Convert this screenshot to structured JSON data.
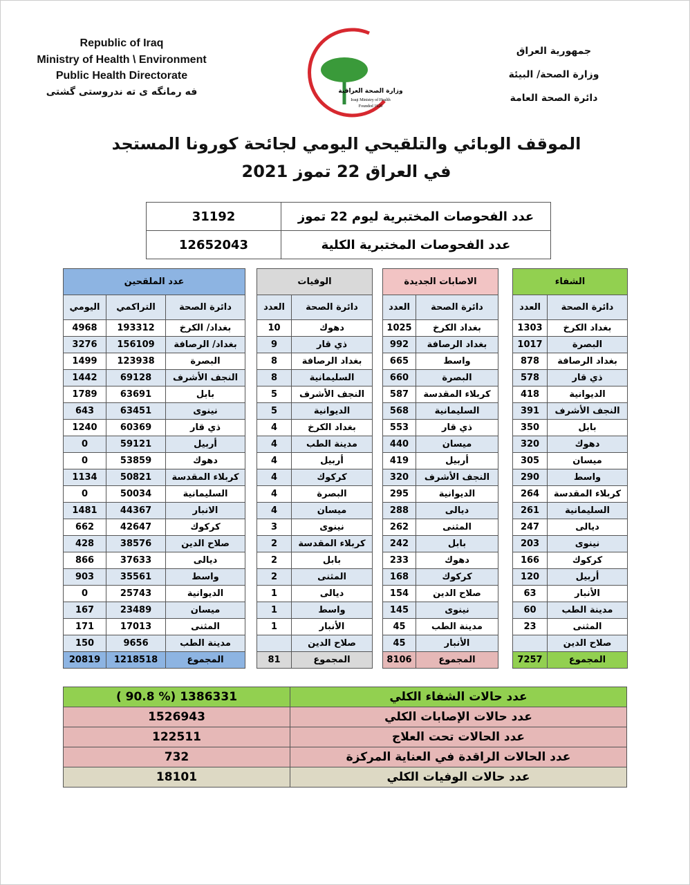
{
  "header": {
    "left": [
      "Republic of Iraq",
      "Ministry of Health \\ Environment",
      "Public Health Directorate",
      "فه رمانگه ی ته ندروستی گشتی"
    ],
    "right": [
      "جمهورية العراق",
      "وزارة الصحة/ البيئة",
      "دائرة الصحة العامة"
    ],
    "logo": [
      "وزارة الصحة العراقية",
      "Iraqi Ministry of Health",
      "Founded 1920"
    ]
  },
  "title": [
    "الموقف الوبائي والتلقيحي اليومي لجائحة كورونا المستجد",
    "في العراق 22  تموز 2021"
  ],
  "tests": {
    "rows": [
      [
        "عدد الفحوصات المختبرية  ليوم 22 تموز",
        31192
      ],
      [
        "عدد الفحوصات المختبرية الكلية",
        12652043
      ]
    ]
  },
  "tables": [
    {
      "title": "الشفاء",
      "columns": [
        "دائرة الصحة",
        "العدد"
      ],
      "rows": [
        [
          "بغداد الكرخ",
          1303
        ],
        [
          "البصرة",
          1017
        ],
        [
          "بغداد الرصافة",
          878
        ],
        [
          "ذي قار",
          578
        ],
        [
          "الديوانية",
          418
        ],
        [
          "النجف الأشرف",
          391
        ],
        [
          "بابل",
          350
        ],
        [
          "دهوك",
          320
        ],
        [
          "ميسان",
          305
        ],
        [
          "واسط",
          290
        ],
        [
          "كربلاء المقدسة",
          264
        ],
        [
          "السليمانية",
          261
        ],
        [
          "ديالى",
          247
        ],
        [
          "نينوى",
          203
        ],
        [
          "كركوك",
          166
        ],
        [
          "أربيل",
          120
        ],
        [
          "الأنبار",
          63
        ],
        [
          "مدينة الطب",
          60
        ],
        [
          "المثنى",
          23
        ],
        [
          "صلاح الدين",
          null
        ]
      ],
      "total": [
        "المجموع",
        7257
      ]
    },
    {
      "title": "الاصابات الجديدة",
      "columns": [
        "دائرة الصحة",
        "العدد"
      ],
      "rows": [
        [
          "بغداد الكرخ",
          1025
        ],
        [
          "بغداد الرصافة",
          992
        ],
        [
          "واسط",
          665
        ],
        [
          "البصرة",
          660
        ],
        [
          "كربلاء المقدسة",
          587
        ],
        [
          "السليمانية",
          568
        ],
        [
          "ذي قار",
          553
        ],
        [
          "ميسان",
          440
        ],
        [
          "أربيل",
          419
        ],
        [
          "النجف الأشرف",
          320
        ],
        [
          "الديوانية",
          295
        ],
        [
          "ديالى",
          288
        ],
        [
          "المثنى",
          262
        ],
        [
          "بابل",
          242
        ],
        [
          "دهوك",
          233
        ],
        [
          "كركوك",
          168
        ],
        [
          "صلاح الدين",
          154
        ],
        [
          "نينوى",
          145
        ],
        [
          "مدينة الطب",
          45
        ],
        [
          "الأنبار",
          45
        ]
      ],
      "total": [
        "المجموع",
        8106
      ]
    },
    {
      "title": "الوفيات",
      "columns": [
        "دائرة الصحة",
        "العدد"
      ],
      "rows": [
        [
          "دهوك",
          10
        ],
        [
          "ذي قار",
          9
        ],
        [
          "بغداد الرصافة",
          8
        ],
        [
          "السليمانية",
          8
        ],
        [
          "النجف الأشرف",
          5
        ],
        [
          "الديوانية",
          5
        ],
        [
          "بغداد الكرخ",
          4
        ],
        [
          "مدينة الطب",
          4
        ],
        [
          "أربيل",
          4
        ],
        [
          "كركوك",
          4
        ],
        [
          "البصرة",
          4
        ],
        [
          "ميسان",
          4
        ],
        [
          "نينوى",
          3
        ],
        [
          "كربلاء المقدسة",
          2
        ],
        [
          "بابل",
          2
        ],
        [
          "المثنى",
          2
        ],
        [
          "ديالى",
          1
        ],
        [
          "واسط",
          1
        ],
        [
          "الأنبار",
          1
        ],
        [
          "صلاح الدين",
          null
        ]
      ],
      "total": [
        "المجموع",
        81
      ]
    },
    {
      "title": "عدد الملقحين",
      "columns": [
        "دائرة الصحة",
        "التراكمي",
        "اليومي"
      ],
      "rows": [
        [
          "بغداد/ الكرخ",
          193312,
          4968
        ],
        [
          "بغداد/ الرصافة",
          156109,
          3276
        ],
        [
          "البصرة",
          123938,
          1499
        ],
        [
          "النجف الأشرف",
          69128,
          1442
        ],
        [
          "بابل",
          63691,
          1789
        ],
        [
          "نينوى",
          63451,
          643
        ],
        [
          "ذي قار",
          60369,
          1240
        ],
        [
          "أربيل",
          59121,
          0
        ],
        [
          "دهوك",
          53859,
          0
        ],
        [
          "كربلاء المقدسة",
          50821,
          1134
        ],
        [
          "السليمانية",
          50034,
          0
        ],
        [
          "الانبار",
          44367,
          1481
        ],
        [
          "كركوك",
          42647,
          662
        ],
        [
          "صلاح الدين",
          38576,
          428
        ],
        [
          "ديالى",
          37633,
          866
        ],
        [
          "واسط",
          35561,
          903
        ],
        [
          "الديوانية",
          25743,
          0
        ],
        [
          "ميسان",
          23489,
          167
        ],
        [
          "المثنى",
          17013,
          171
        ],
        [
          "مدينة الطب",
          9656,
          150
        ]
      ],
      "total": [
        "المجموع",
        1218518,
        20819
      ]
    }
  ],
  "summary": [
    [
      "عدد حالات الشفاء الكلي",
      "( 90.8 %)  1386331"
    ],
    [
      "عدد حالات الإصابات الكلي",
      1526943
    ],
    [
      "عدد الحالات تحت العلاج",
      122511
    ],
    [
      "عدد الحالات الراقدة في العناية المركزة",
      732
    ],
    [
      "عدد حالات الوفيات الكلي",
      18101
    ]
  ]
}
